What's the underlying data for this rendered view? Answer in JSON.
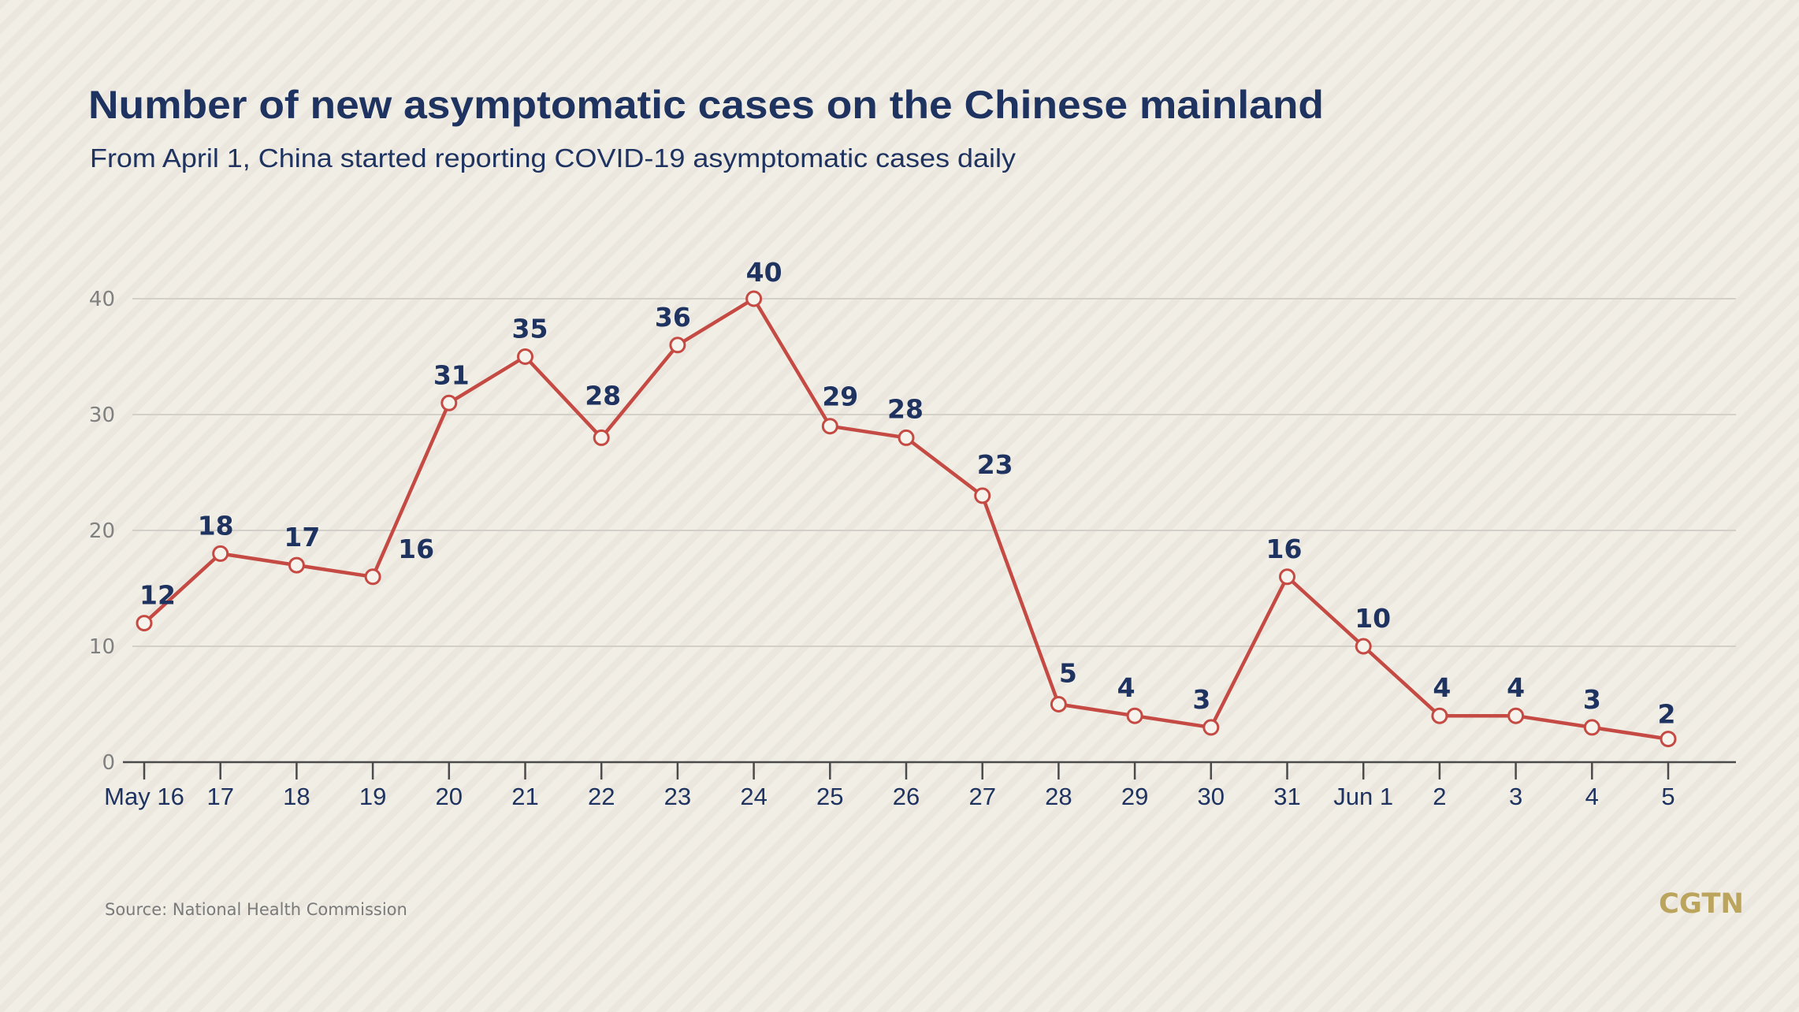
{
  "brand": {
    "logo_text": "CGTN",
    "logo_color": "#bba45c"
  },
  "colors": {
    "background": "#f1eee6",
    "title": "#1f3360",
    "line": "#c44a43",
    "gridline": "#d3d0c9",
    "axis_label": "#808080"
  },
  "source": "Source: National Health Commission",
  "chart_data": {
    "type": "line",
    "title": "Number of new asymptomatic cases on the Chinese mainland",
    "subtitle": "From April 1, China started reporting COVID-19 asymptomatic cases daily",
    "xlabel": "",
    "ylabel": "",
    "ylim": [
      0,
      40
    ],
    "yticks": [
      "0",
      "10",
      "20",
      "30",
      "40"
    ],
    "grid": true,
    "legend": "none",
    "categories": [
      "May 16",
      "17",
      "18",
      "19",
      "20",
      "21",
      "22",
      "23",
      "24",
      "25",
      "26",
      "27",
      "28",
      "29",
      "30",
      "31",
      "Jun 1",
      "2",
      "3",
      "4",
      "5"
    ],
    "series": [
      {
        "name": "New asymptomatic cases",
        "values": [
          12,
          18,
          17,
          16,
          31,
          35,
          28,
          36,
          40,
          29,
          28,
          23,
          5,
          4,
          3,
          16,
          10,
          4,
          4,
          3,
          2
        ],
        "data_labels": [
          "12",
          "18",
          "17",
          "16",
          "31",
          "35",
          "28",
          "36",
          "40",
          "29",
          "28",
          "23",
          "5",
          "4",
          "3",
          "16",
          "10",
          "4",
          "4",
          "3",
          "2"
        ]
      }
    ]
  }
}
